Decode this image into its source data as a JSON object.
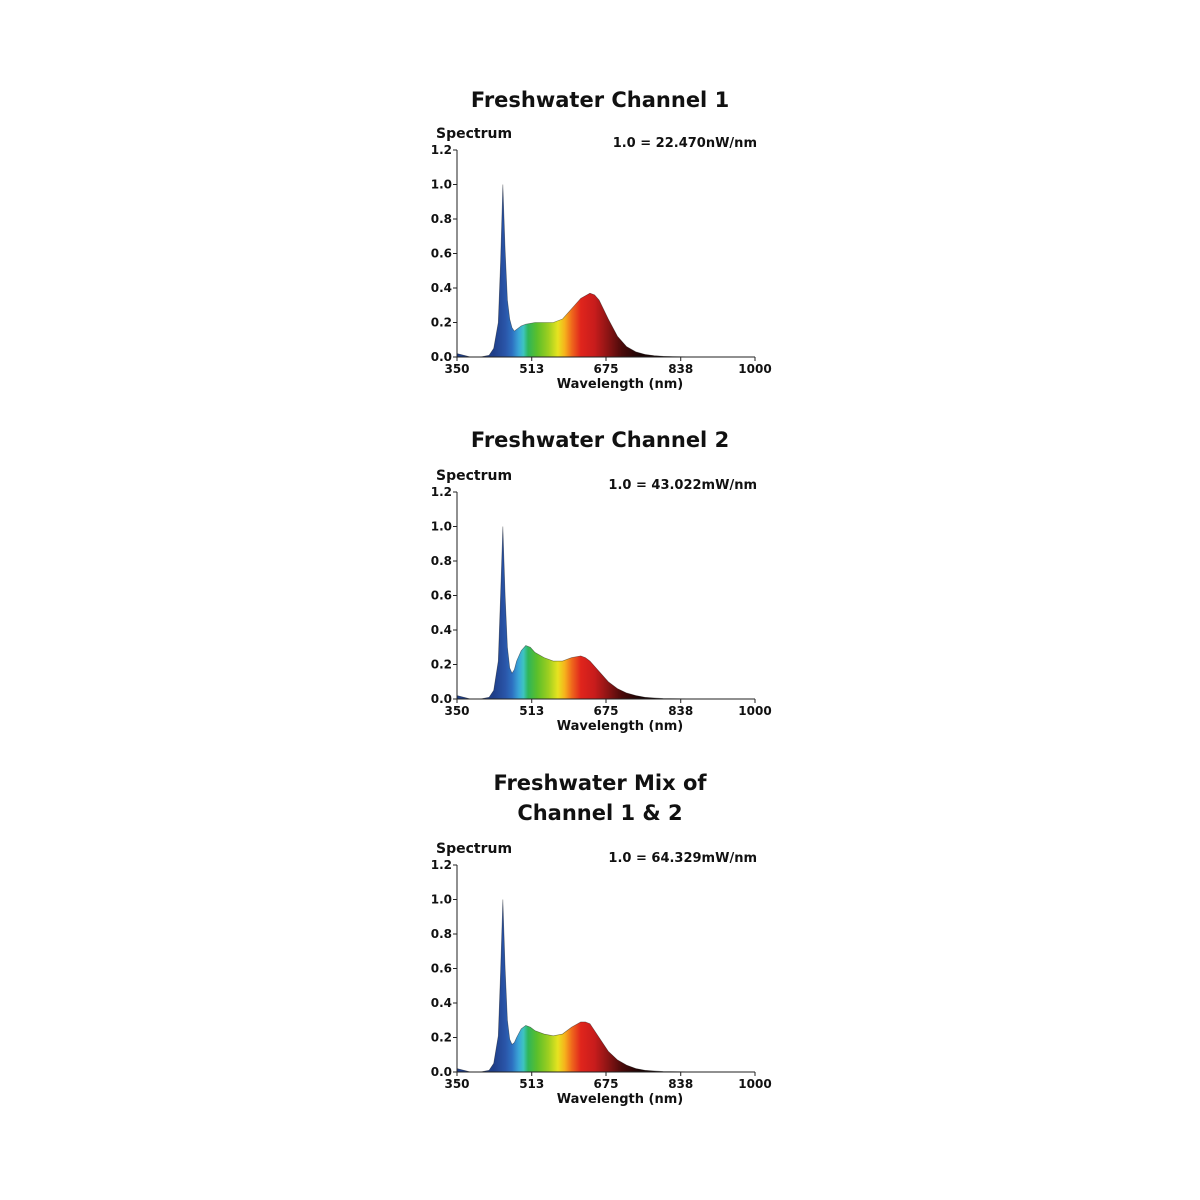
{
  "chart_data": [
    {
      "type": "area",
      "title": "Freshwater Channel 1",
      "ylabel": "Spectrum",
      "xlabel": "Wavelength (nm)",
      "scale_note": "1.0 = 22.470nW/nm",
      "xlim": [
        350,
        1000
      ],
      "ylim": [
        0,
        1.2
      ],
      "x_ticks": [
        "350",
        "513",
        "675",
        "838",
        "1000"
      ],
      "y_ticks": [
        "0.0",
        "0.2",
        "0.4",
        "0.6",
        "0.8",
        "1.0",
        "1.2"
      ],
      "grid": false,
      "fill": "visible-spectrum gradient",
      "x": [
        350,
        380,
        400,
        420,
        430,
        440,
        445,
        450,
        455,
        460,
        465,
        470,
        475,
        480,
        490,
        500,
        520,
        540,
        560,
        580,
        600,
        620,
        640,
        650,
        660,
        680,
        700,
        720,
        740,
        760,
        780,
        800,
        850,
        900,
        1000
      ],
      "y": [
        0.02,
        0.0,
        0.0,
        0.01,
        0.05,
        0.2,
        0.55,
        1.0,
        0.62,
        0.33,
        0.22,
        0.17,
        0.15,
        0.16,
        0.18,
        0.19,
        0.2,
        0.2,
        0.2,
        0.22,
        0.28,
        0.34,
        0.37,
        0.36,
        0.33,
        0.22,
        0.12,
        0.06,
        0.03,
        0.015,
        0.008,
        0.004,
        0.001,
        0.0,
        0.0
      ]
    },
    {
      "type": "area",
      "title": "Freshwater Channel 2",
      "ylabel": "Spectrum",
      "xlabel": "Wavelength (nm)",
      "scale_note": "1.0 = 43.022mW/nm",
      "xlim": [
        350,
        1000
      ],
      "ylim": [
        0,
        1.2
      ],
      "x_ticks": [
        "350",
        "513",
        "675",
        "838",
        "1000"
      ],
      "y_ticks": [
        "0.0",
        "0.2",
        "0.4",
        "0.6",
        "0.8",
        "1.0",
        "1.2"
      ],
      "grid": false,
      "fill": "visible-spectrum gradient",
      "x": [
        350,
        380,
        400,
        420,
        430,
        440,
        445,
        450,
        455,
        460,
        465,
        470,
        475,
        480,
        490,
        500,
        510,
        520,
        540,
        560,
        580,
        600,
        620,
        630,
        640,
        660,
        680,
        700,
        720,
        740,
        760,
        780,
        800,
        850,
        900,
        1000
      ],
      "y": [
        0.02,
        0.0,
        0.0,
        0.01,
        0.05,
        0.22,
        0.6,
        1.0,
        0.6,
        0.3,
        0.18,
        0.15,
        0.17,
        0.22,
        0.28,
        0.31,
        0.3,
        0.27,
        0.24,
        0.22,
        0.22,
        0.24,
        0.25,
        0.24,
        0.22,
        0.16,
        0.1,
        0.06,
        0.035,
        0.02,
        0.01,
        0.006,
        0.003,
        0.001,
        0.0,
        0.0
      ]
    },
    {
      "type": "area",
      "title": "Freshwater Mix of Channel 1 & 2",
      "ylabel": "Spectrum",
      "xlabel": "Wavelength (nm)",
      "scale_note": "1.0 = 64.329mW/nm",
      "xlim": [
        350,
        1000
      ],
      "ylim": [
        0,
        1.2
      ],
      "x_ticks": [
        "350",
        "513",
        "675",
        "838",
        "1000"
      ],
      "y_ticks": [
        "0.0",
        "0.2",
        "0.4",
        "0.6",
        "0.8",
        "1.0",
        "1.2"
      ],
      "grid": false,
      "fill": "visible-spectrum gradient",
      "x": [
        350,
        380,
        400,
        420,
        430,
        440,
        445,
        450,
        455,
        460,
        465,
        470,
        475,
        480,
        490,
        500,
        510,
        520,
        540,
        560,
        580,
        600,
        620,
        630,
        640,
        660,
        680,
        700,
        720,
        740,
        760,
        780,
        800,
        850,
        900,
        1000
      ],
      "y": [
        0.02,
        0.0,
        0.0,
        0.01,
        0.05,
        0.21,
        0.58,
        1.0,
        0.6,
        0.3,
        0.19,
        0.16,
        0.17,
        0.2,
        0.25,
        0.27,
        0.26,
        0.24,
        0.22,
        0.21,
        0.22,
        0.26,
        0.29,
        0.29,
        0.28,
        0.2,
        0.12,
        0.07,
        0.04,
        0.02,
        0.01,
        0.006,
        0.003,
        0.001,
        0.0,
        0.0
      ]
    }
  ]
}
